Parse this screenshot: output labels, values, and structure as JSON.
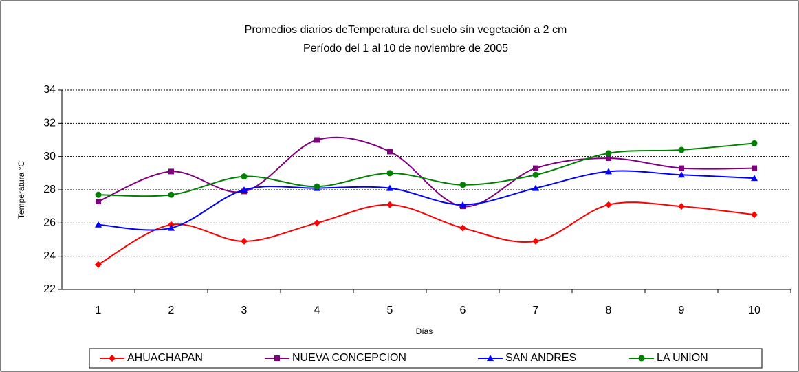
{
  "chart_data": {
    "type": "line",
    "title": "Promedios diarios deTemperatura del suelo sín vegetación a 2 cm",
    "subtitle": "Período del 1 al 10 de noviembre de 2005",
    "x_label": "Días",
    "y_label": "Temperatura °C",
    "categories": [
      1,
      2,
      3,
      4,
      5,
      6,
      7,
      8,
      9,
      10
    ],
    "ylim": [
      22,
      34
    ],
    "yticks": [
      22,
      24,
      26,
      28,
      30,
      32,
      34
    ],
    "grid": true,
    "smooth": true,
    "legend": "bottom",
    "series": [
      {
        "name": "AHUACHAPAN",
        "color": "#ff0000",
        "marker": "diamond",
        "values": [
          23.5,
          25.9,
          24.9,
          26.0,
          27.1,
          25.7,
          24.9,
          27.1,
          27.0,
          26.5
        ]
      },
      {
        "name": "NUEVA CONCEPCION",
        "color": "#800080",
        "marker": "square",
        "values": [
          27.3,
          29.1,
          27.9,
          31.0,
          30.3,
          27.0,
          29.3,
          29.9,
          29.3,
          29.3
        ]
      },
      {
        "name": "SAN ANDRES",
        "color": "#0000ff",
        "marker": "triangle",
        "values": [
          25.9,
          25.7,
          28.0,
          28.1,
          28.1,
          27.1,
          28.1,
          29.1,
          28.9,
          28.7
        ]
      },
      {
        "name": "LA UNION",
        "color": "#008000",
        "marker": "circle",
        "values": [
          27.7,
          27.7,
          28.8,
          28.2,
          29.0,
          28.3,
          28.9,
          30.2,
          30.4,
          30.8
        ]
      }
    ]
  }
}
